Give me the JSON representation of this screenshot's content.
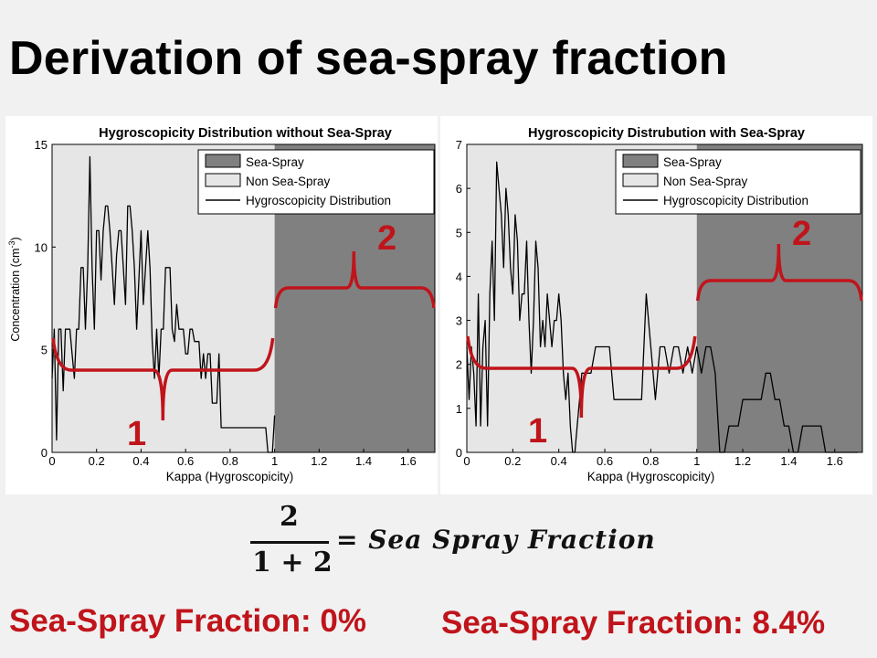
{
  "slide": {
    "title": "Derivation of sea-spray fraction"
  },
  "formula": {
    "numerator": "2",
    "denominator": "1 + 2",
    "rhs": "= Sea Spray Fraction"
  },
  "results": {
    "left": "Sea-Spray Fraction: 0%",
    "right": "Sea-Spray Fraction: 8.4%"
  },
  "colors": {
    "sea_spray_shade": "#808080",
    "non_sea_spray_shade": "#e6e6e6",
    "annotation_red": "#c0141b",
    "line": "#000000"
  },
  "chart_data": [
    {
      "type": "line",
      "title": "Hygroscopicity Distribution without Sea-Spray",
      "xlabel": "Kappa (Hygroscopicity)",
      "ylabel": "Concentration (cm",
      "ylabel_superscript": "-3",
      "ylabel_suffix": ")",
      "xlim": [
        0,
        1.72
      ],
      "ylim": [
        0,
        15
      ],
      "xticks": [
        0,
        0.2,
        0.4,
        0.6,
        0.8,
        1,
        1.2,
        1.4,
        1.6
      ],
      "xtick_labels": [
        "0",
        "0.2",
        "0.4",
        "0.6",
        "0.8",
        "1",
        "1.2",
        "1.4",
        "1.6"
      ],
      "yticks": [
        0,
        5,
        10,
        15
      ],
      "ytick_labels": [
        "0",
        "5",
        "10",
        "15"
      ],
      "regions": [
        {
          "name": "Non Sea-Spray",
          "x": [
            0,
            1.0
          ],
          "color": "#e6e6e6"
        },
        {
          "name": "Sea-Spray",
          "x": [
            1.0,
            1.72
          ],
          "color": "#808080"
        }
      ],
      "legend": {
        "position": "top-right",
        "entries": [
          {
            "label": "Sea-Spray",
            "kind": "patch",
            "color": "#808080"
          },
          {
            "label": "Non Sea-Spray",
            "kind": "patch",
            "color": "#e6e6e6"
          },
          {
            "label": "Hygroscopicity Distribution",
            "kind": "line",
            "color": "#000000"
          }
        ]
      },
      "series": [
        {
          "name": "Hygroscopicity Distribution",
          "x": [
            0,
            0.01,
            0.02,
            0.03,
            0.04,
            0.05,
            0.06,
            0.07,
            0.08,
            0.09,
            0.1,
            0.11,
            0.12,
            0.13,
            0.14,
            0.15,
            0.16,
            0.17,
            0.18,
            0.19,
            0.2,
            0.21,
            0.22,
            0.23,
            0.24,
            0.25,
            0.26,
            0.27,
            0.28,
            0.29,
            0.3,
            0.31,
            0.32,
            0.33,
            0.34,
            0.35,
            0.36,
            0.37,
            0.38,
            0.39,
            0.4,
            0.41,
            0.42,
            0.43,
            0.44,
            0.45,
            0.46,
            0.47,
            0.48,
            0.49,
            0.5,
            0.51,
            0.52,
            0.53,
            0.54,
            0.55,
            0.56,
            0.57,
            0.58,
            0.59,
            0.6,
            0.61,
            0.62,
            0.63,
            0.64,
            0.65,
            0.66,
            0.67,
            0.68,
            0.69,
            0.7,
            0.71,
            0.72,
            0.73,
            0.74,
            0.75,
            0.76,
            0.77,
            0.78,
            0.79,
            0.8,
            0.81,
            0.82,
            0.83,
            0.84,
            0.85,
            0.86,
            0.87,
            0.88,
            0.89,
            0.9,
            0.91,
            0.92,
            0.93,
            0.94,
            0.95,
            0.96,
            0.97,
            0.98,
            0.99,
            1.0
          ],
          "values": [
            3.6,
            6,
            0.6,
            6,
            6,
            3,
            6,
            6,
            6,
            4.8,
            3.6,
            6,
            6,
            9,
            9,
            6,
            9,
            14.4,
            9,
            6,
            10.8,
            10.8,
            8.4,
            10.8,
            12,
            12,
            10.8,
            9,
            7.2,
            9.6,
            10.8,
            10.8,
            9,
            7.2,
            12,
            12,
            10.8,
            9,
            6,
            8.4,
            10.8,
            7.2,
            9,
            10.8,
            9,
            5.4,
            3.6,
            6,
            3.6,
            6,
            6,
            9,
            9,
            9,
            6,
            5.4,
            7.2,
            6,
            6,
            6,
            4.8,
            4.8,
            6,
            6,
            5.4,
            5.4,
            5.4,
            3.6,
            4.8,
            3.6,
            4.8,
            4.8,
            2.4,
            2.4,
            2.4,
            4.8,
            1.2,
            1.2,
            1.2,
            1.2,
            1.2,
            1.2,
            1.2,
            1.2,
            1.2,
            1.2,
            1.2,
            1.2,
            1.2,
            1.2,
            1.2,
            1.2,
            1.2,
            1.2,
            1.2,
            1.2,
            1.2,
            0,
            0,
            0,
            1.8
          ]
        }
      ],
      "annotations": [
        {
          "label": "1",
          "spans_x": [
            0,
            1.0
          ]
        },
        {
          "label": "2",
          "spans_x": [
            1.0,
            1.72
          ]
        }
      ]
    },
    {
      "type": "line",
      "title": "Hygroscopicity Distrubution with Sea-Spray",
      "xlabel": "Kappa (Hygroscopicity)",
      "ylabel": "",
      "xlim": [
        0,
        1.72
      ],
      "ylim": [
        0,
        7
      ],
      "xticks": [
        0,
        0.2,
        0.4,
        0.6,
        0.8,
        1,
        1.2,
        1.4,
        1.6
      ],
      "xtick_labels": [
        "0",
        "0.2",
        "0.4",
        "0.6",
        "0.8",
        "1",
        "1.2",
        "1.4",
        "1.6"
      ],
      "yticks": [
        0,
        1,
        2,
        3,
        4,
        5,
        6,
        7
      ],
      "ytick_labels": [
        "0",
        "1",
        "2",
        "3",
        "4",
        "5",
        "6",
        "7"
      ],
      "regions": [
        {
          "name": "Non Sea-Spray",
          "x": [
            0,
            1.0
          ],
          "color": "#e6e6e6"
        },
        {
          "name": "Sea-Spray",
          "x": [
            1.0,
            1.72
          ],
          "color": "#808080"
        }
      ],
      "legend": {
        "position": "top-right",
        "entries": [
          {
            "label": "Sea-Spray",
            "kind": "patch",
            "color": "#808080"
          },
          {
            "label": "Non Sea-Spray",
            "kind": "patch",
            "color": "#e6e6e6"
          },
          {
            "label": "Hygroscopicity Distribution",
            "kind": "line",
            "color": "#000000"
          }
        ]
      },
      "series": [
        {
          "name": "Hygroscopicity Distribution",
          "x": [
            0,
            0.01,
            0.02,
            0.03,
            0.04,
            0.05,
            0.06,
            0.07,
            0.08,
            0.09,
            0.1,
            0.11,
            0.12,
            0.13,
            0.14,
            0.15,
            0.16,
            0.17,
            0.18,
            0.19,
            0.2,
            0.21,
            0.22,
            0.23,
            0.24,
            0.25,
            0.26,
            0.27,
            0.28,
            0.29,
            0.3,
            0.31,
            0.32,
            0.33,
            0.34,
            0.35,
            0.36,
            0.37,
            0.38,
            0.39,
            0.4,
            0.41,
            0.42,
            0.43,
            0.44,
            0.45,
            0.46,
            0.47,
            0.48,
            0.49,
            0.5,
            0.52,
            0.54,
            0.56,
            0.58,
            0.6,
            0.62,
            0.64,
            0.66,
            0.68,
            0.7,
            0.72,
            0.74,
            0.76,
            0.78,
            0.8,
            0.82,
            0.84,
            0.86,
            0.88,
            0.9,
            0.92,
            0.94,
            0.96,
            0.98,
            1.0,
            1.02,
            1.04,
            1.06,
            1.08,
            1.1,
            1.12,
            1.14,
            1.16,
            1.18,
            1.2,
            1.22,
            1.24,
            1.26,
            1.28,
            1.3,
            1.32,
            1.34,
            1.36,
            1.38,
            1.4,
            1.42,
            1.44,
            1.46,
            1.48,
            1.5,
            1.52,
            1.54,
            1.56,
            1.58,
            1.6,
            1.62,
            1.64,
            1.66,
            1.68,
            1.7
          ],
          "values": [
            2.4,
            1.2,
            2.4,
            1.8,
            0.6,
            3.6,
            0.6,
            2.4,
            3,
            0.6,
            3.6,
            4.8,
            3,
            6.6,
            6,
            5.4,
            4.2,
            6,
            5.4,
            4.2,
            3.6,
            5.4,
            4.8,
            3,
            3.6,
            3.6,
            4.8,
            3,
            1.8,
            3,
            4.8,
            4.2,
            2.4,
            3,
            2.4,
            3.6,
            3,
            2.4,
            3,
            3,
            3.6,
            3,
            1.8,
            1.2,
            1.8,
            0.6,
            0,
            0,
            0.6,
            1.2,
            1.8,
            1.8,
            1.8,
            2.4,
            2.4,
            2.4,
            2.4,
            1.2,
            1.2,
            1.2,
            1.2,
            1.2,
            1.2,
            1.2,
            3.6,
            2.4,
            1.2,
            2.4,
            2.4,
            1.8,
            2.4,
            2.4,
            1.8,
            2.4,
            1.8,
            2.4,
            1.8,
            2.4,
            2.4,
            1.8,
            0,
            0,
            0.6,
            0.6,
            0.6,
            1.2,
            1.2,
            1.2,
            1.2,
            1.2,
            1.8,
            1.8,
            1.2,
            1.2,
            0.6,
            0.6,
            0,
            0,
            0.6,
            0.6,
            0.6,
            0.6,
            0.6,
            0,
            0,
            0,
            0,
            0,
            0,
            0,
            0
          ],
          "values_note": ""
        }
      ],
      "annotations": [
        {
          "label": "1",
          "spans_x": [
            0,
            1.0
          ]
        },
        {
          "label": "2",
          "spans_x": [
            1.0,
            1.72
          ]
        }
      ]
    }
  ]
}
